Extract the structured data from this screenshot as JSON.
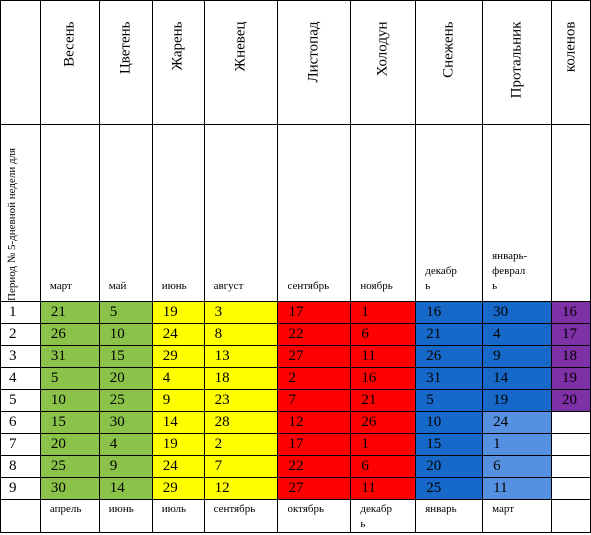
{
  "row_header_label": "Период № 5-дневной недели для",
  "months": [
    "Весень",
    "Цветень",
    "Жарень",
    "Жневец",
    "Листопад",
    "Холодун",
    "Снежень",
    "Протальник",
    "коленов"
  ],
  "start_months": [
    "март",
    "май",
    "июнь",
    "август",
    "сентябрь",
    "ноябрь",
    "декабрь",
    "январь-февраль",
    ""
  ],
  "start_months_wrapped": [
    [
      "март"
    ],
    [
      "май"
    ],
    [
      "июнь"
    ],
    [
      "август"
    ],
    [
      "сентябрь"
    ],
    [
      "ноябрь"
    ],
    [
      "декабр",
      "ь"
    ],
    [
      "январь-",
      "феврал",
      "ь"
    ],
    [
      ""
    ]
  ],
  "end_months": [
    "апрель",
    "июнь",
    "июль",
    "сентябрь",
    "октябрь",
    "декабрь",
    "январь",
    "март",
    ""
  ],
  "end_months_wrapped": [
    [
      "апрель"
    ],
    [
      "июнь"
    ],
    [
      "июль"
    ],
    [
      "сентябрь"
    ],
    [
      "октябрь"
    ],
    [
      "декабр",
      "ь"
    ],
    [
      "январь"
    ],
    [
      "март"
    ],
    [
      ""
    ]
  ],
  "row_numbers": [
    "1",
    "2",
    "3",
    "4",
    "5",
    "6",
    "7",
    "8",
    "9"
  ],
  "rows": [
    [
      "21",
      "5",
      "19",
      "3",
      "17",
      "1",
      "16",
      "30",
      "16"
    ],
    [
      "26",
      "10",
      "24",
      "8",
      "22",
      "6",
      "21",
      "4",
      "17"
    ],
    [
      "31",
      "15",
      "29",
      "13",
      "27",
      "11",
      "26",
      "9",
      "18"
    ],
    [
      "5",
      "20",
      "4",
      "18",
      "2",
      "16",
      "31",
      "14",
      "19"
    ],
    [
      "10",
      "25",
      "9",
      "23",
      "7",
      "21",
      "5",
      "19",
      "20"
    ],
    [
      "15",
      "30",
      "14",
      "28",
      "12",
      "26",
      "10",
      "24",
      ""
    ],
    [
      "20",
      "4",
      "19",
      "2",
      "17",
      "1",
      "15",
      "1",
      ""
    ],
    [
      "25",
      "9",
      "24",
      "7",
      "22",
      "6",
      "20",
      "6",
      ""
    ],
    [
      "30",
      "14",
      "29",
      "12",
      "27",
      "11",
      "25",
      "11",
      ""
    ]
  ],
  "colors": {
    "green": "#8bc34a",
    "yellow": "#ffff00",
    "red": "#ff0000",
    "blue": "#1669c9",
    "light_blue": "#5591e0",
    "purple": "#7e30a6"
  }
}
